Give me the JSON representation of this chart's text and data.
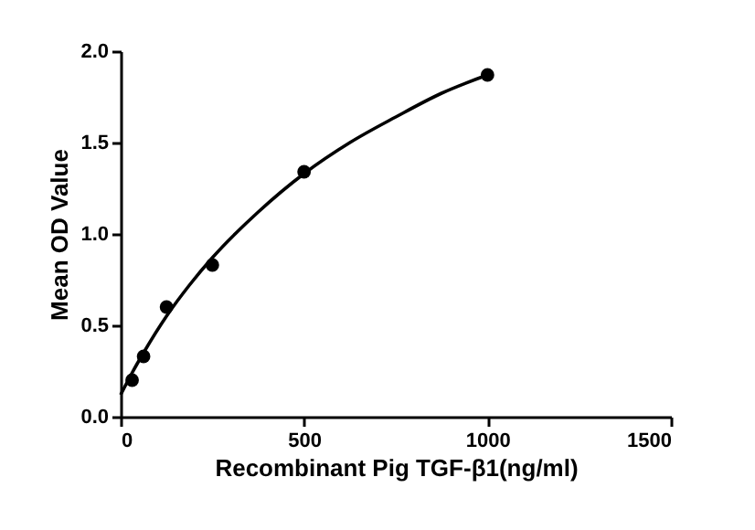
{
  "chart_data": {
    "type": "scatter",
    "xlabel": "Recombinant Pig TGF-β1(ng/ml)",
    "ylabel": "Mean OD Value",
    "x": [
      31.25,
      62.5,
      125,
      250,
      500,
      1000
    ],
    "series": [
      {
        "color": "#000000",
        "marker": "circle",
        "values": [
          0.2,
          0.33,
          0.6,
          0.83,
          1.34,
          1.87
        ]
      },
      {
        "type": "line",
        "color": "#000000",
        "x": [
          0,
          31.25,
          62.5,
          125,
          187.5,
          250,
          375,
          500,
          625,
          750,
          875,
          1000
        ],
        "values": [
          0.12,
          0.24,
          0.35,
          0.55,
          0.72,
          0.87,
          1.12,
          1.33,
          1.5,
          1.64,
          1.77,
          1.87
        ]
      }
    ],
    "xlim": [
      0,
      1500
    ],
    "xticks": [
      0,
      500,
      1000,
      1500
    ],
    "ylim": [
      0,
      2
    ],
    "yticks": [
      {
        "value": 0,
        "label": "0.0"
      },
      {
        "value": 0.5,
        "label": "0.5"
      },
      {
        "value": 1,
        "label": "1.0"
      },
      {
        "value": 1.5,
        "label": "1.5"
      },
      {
        "value": 2,
        "label": "2.0"
      }
    ],
    "grid": false,
    "legend": false
  }
}
